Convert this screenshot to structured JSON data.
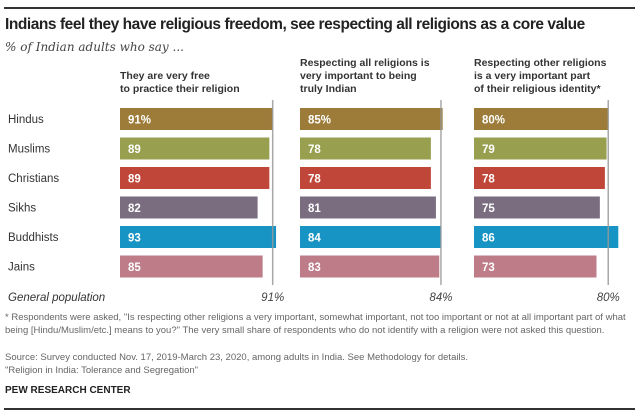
{
  "title": "Indians feel they have religious freedom, see respecting all religions as a core value",
  "subtitle": "% of Indian adults who say ...",
  "chart_data": [
    {
      "type": "bar",
      "title": "They are very free to practice their religion",
      "title_lines": [
        "They are very free",
        "to practice their religion"
      ],
      "categories": [
        "Hindus",
        "Muslims",
        "Christians",
        "Sikhs",
        "Buddhists",
        "Jains"
      ],
      "values": [
        91,
        89,
        89,
        82,
        93,
        85
      ],
      "data_labels": [
        "91%",
        "89",
        "89",
        "82",
        "93",
        "85"
      ],
      "reference": {
        "label": "General population",
        "value": 91,
        "value_label": "91%"
      }
    },
    {
      "type": "bar",
      "title": "Respecting all religions is very important to being truly Indian",
      "title_lines": [
        "Respecting all religions is",
        "very important to being",
        "truly Indian"
      ],
      "categories": [
        "Hindus",
        "Muslims",
        "Christians",
        "Sikhs",
        "Buddhists",
        "Jains"
      ],
      "values": [
        85,
        78,
        78,
        81,
        84,
        83
      ],
      "data_labels": [
        "85%",
        "78",
        "78",
        "81",
        "84",
        "83"
      ],
      "reference": {
        "label": "General population",
        "value": 84,
        "value_label": "84%"
      }
    },
    {
      "type": "bar",
      "title": "Respecting other religions is a very important part of their religious identity*",
      "title_lines": [
        "Respecting other religions",
        "is a very important part",
        "of their religious identity*"
      ],
      "categories": [
        "Hindus",
        "Muslims",
        "Christians",
        "Sikhs",
        "Buddhists",
        "Jains"
      ],
      "values": [
        80,
        79,
        78,
        75,
        86,
        73
      ],
      "data_labels": [
        "80%",
        "79",
        "78",
        "75",
        "86",
        "73"
      ],
      "reference": {
        "label": "General population",
        "value": 80,
        "value_label": "80%"
      }
    }
  ],
  "colors": {
    "Hindus": "#9c7c38",
    "Muslims": "#98a050",
    "Christians": "#c0463a",
    "Sikhs": "#7a6d80",
    "Buddhists": "#1894c4",
    "Jains": "#bd7c88"
  },
  "reference_row_label": "General population",
  "footnotes": {
    "note": "* Respondents were asked, \"Is respecting other religions a very important, somewhat important, not too important or not at all important part of what being [Hindu/Muslim/etc.] means to you?\" The very small share of respondents who do not identify with a religion were not asked this question.",
    "source": "Source: Survey conducted Nov. 17, 2019-March 23, 2020, among adults in India. See Methodology for details.",
    "report": "\"Religion in India: Tolerance and Segregation\""
  },
  "brand": "PEW RESEARCH CENTER"
}
